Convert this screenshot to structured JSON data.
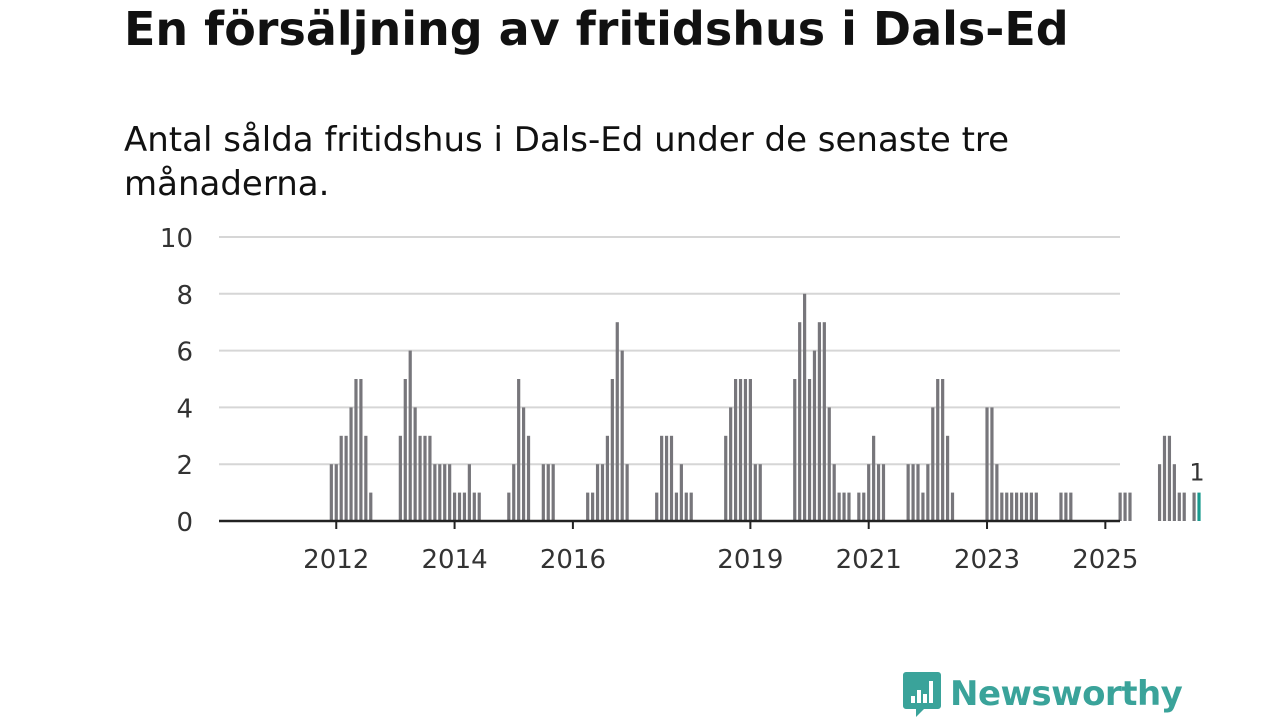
{
  "title": "En försäljning av fritidshus i Dals-Ed",
  "subtitle": "Antal sålda fritidshus i Dals-Ed under de senaste tre månaderna.",
  "brand": {
    "name": "Newsworthy",
    "color": "#3aa39a",
    "icon": "newsworthy-logo-icon"
  },
  "colors": {
    "bar": "#77767b",
    "highlight": "#1a9a8f",
    "grid": "#d6d6d6",
    "axis": "#222222",
    "text": "#333333"
  },
  "chart_data": {
    "type": "bar",
    "ylim": [
      0,
      10
    ],
    "yticks": [
      0,
      2,
      4,
      6,
      8,
      10
    ],
    "xticks": [
      {
        "label": "2012",
        "index": 12
      },
      {
        "label": "2014",
        "index": 36
      },
      {
        "label": "2016",
        "index": 60
      },
      {
        "label": "2019",
        "index": 96
      },
      {
        "label": "2021",
        "index": 120
      },
      {
        "label": "2023",
        "index": 144
      },
      {
        "label": "2025",
        "index": 168
      }
    ],
    "grid": true,
    "series": [
      {
        "values": [
          0,
          0,
          0,
          0,
          0,
          0,
          0,
          0,
          0,
          0,
          0,
          2,
          2,
          3,
          3,
          4,
          5,
          5,
          3,
          1,
          0,
          0,
          0,
          0,
          0,
          3,
          5,
          6,
          4,
          3,
          3,
          3,
          2,
          2,
          2,
          2,
          1,
          1,
          1,
          2,
          1,
          1,
          0,
          0,
          0,
          0,
          0,
          1,
          2,
          5,
          4,
          3,
          0,
          0,
          2,
          2,
          2,
          0,
          0,
          0,
          0,
          0,
          0,
          1,
          1,
          2,
          2,
          3,
          5,
          7,
          6,
          2,
          0,
          0,
          0,
          0,
          0,
          1,
          3,
          3,
          3,
          1,
          2,
          1,
          1,
          0,
          0,
          0,
          0,
          0,
          0,
          3,
          4,
          5,
          5,
          5,
          5,
          2,
          2,
          0,
          0,
          0,
          0,
          0,
          0,
          5,
          7,
          8,
          5,
          6,
          7,
          7,
          4,
          2,
          1,
          1,
          1,
          0,
          1,
          1,
          2,
          3,
          2,
          2,
          0,
          0,
          0,
          0,
          2,
          2,
          2,
          1,
          2,
          4,
          5,
          5,
          3,
          1,
          0,
          0,
          0,
          0,
          0,
          0,
          4,
          4,
          2,
          1,
          1,
          1,
          1,
          1,
          1,
          1,
          1,
          0,
          0,
          0,
          0,
          1,
          1,
          1,
          0,
          0,
          0,
          0,
          0,
          0,
          0,
          0,
          0,
          1,
          1,
          1,
          0,
          0,
          0,
          0,
          0,
          2,
          3,
          3,
          2,
          1,
          1,
          0,
          1,
          1
        ]
      }
    ],
    "highlight_label": "1"
  }
}
